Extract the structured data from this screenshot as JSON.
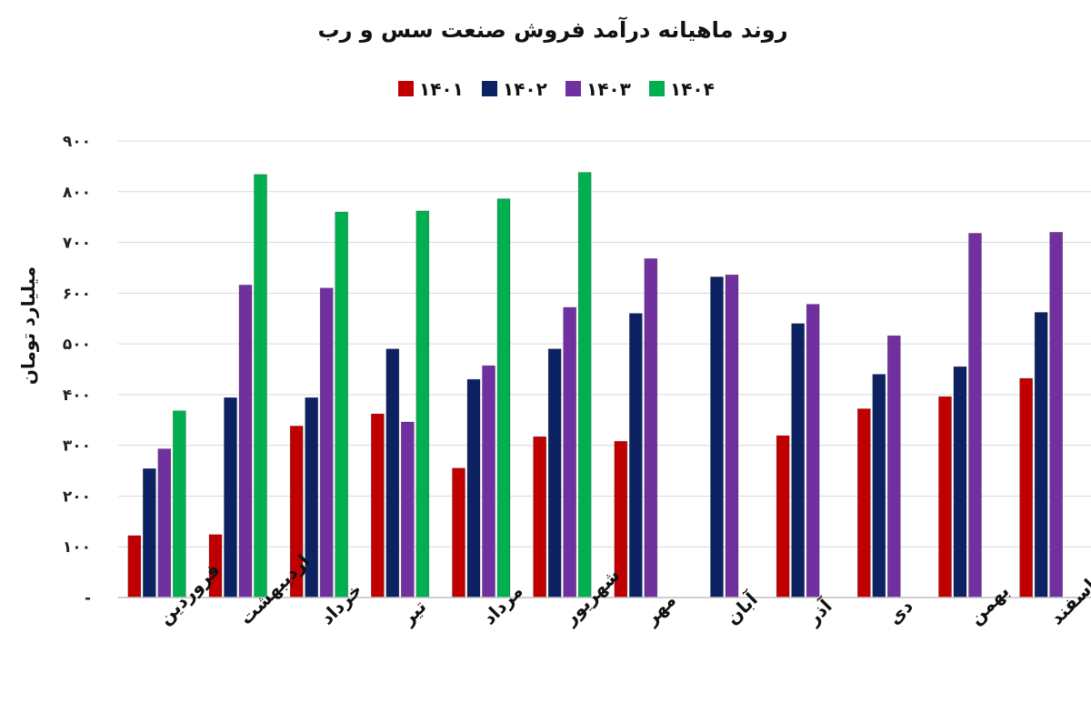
{
  "chart_data": {
    "type": "bar",
    "title": "روند ماهیانه درآمد فروش صنعت سس و رب",
    "ylabel": "میلیارد تومان",
    "xlabel": "",
    "ylim": [
      0,
      900
    ],
    "yticks": [
      0,
      100,
      200,
      300,
      400,
      500,
      600,
      700,
      800,
      900
    ],
    "ytick_labels": [
      "-",
      "۱۰۰",
      "۲۰۰",
      "۳۰۰",
      "۴۰۰",
      "۵۰۰",
      "۶۰۰",
      "۷۰۰",
      "۸۰۰",
      "۹۰۰"
    ],
    "grid": true,
    "legend_position": "top",
    "categories": [
      "فروردین",
      "اردیبهشت",
      "خرداد",
      "تیر",
      "مرداد",
      "شهریور",
      "مهر",
      "آبان",
      "آذر",
      "دی",
      "بهمن",
      "اسفند"
    ],
    "series": [
      {
        "name": "۱۴۰۱",
        "color": "#c00000",
        "values": [
          122,
          124,
          338,
          362,
          255,
          317,
          308,
          null,
          319,
          372,
          396,
          432
        ]
      },
      {
        "name": "۱۴۰۲",
        "color": "#0d2263",
        "values": [
          254,
          394,
          394,
          490,
          430,
          490,
          560,
          632,
          540,
          440,
          455,
          562
        ]
      },
      {
        "name": "۱۴۰۳",
        "color": "#7030a0",
        "values": [
          293,
          616,
          610,
          346,
          457,
          572,
          668,
          636,
          578,
          516,
          718,
          720
        ]
      },
      {
        "name": "۱۴۰۴",
        "color": "#00b050",
        "values": [
          368,
          834,
          760,
          762,
          786,
          838,
          null,
          null,
          null,
          null,
          null,
          null
        ]
      }
    ]
  }
}
